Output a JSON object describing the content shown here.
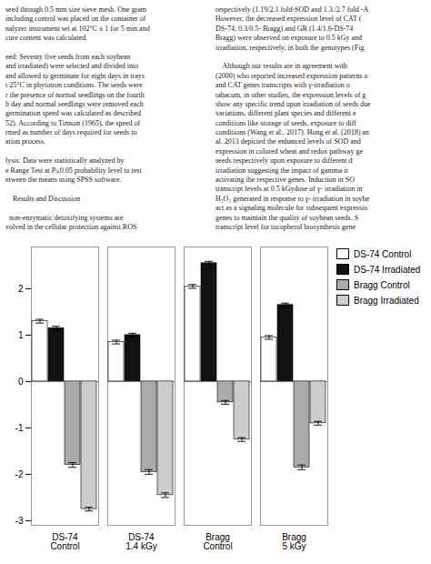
{
  "chart_data": {
    "type": "bar",
    "categories": [
      "DS-74\nControl",
      "DS-74\n1.4 kGy",
      "Bragg\nControl",
      "Bragg\n5 kGy"
    ],
    "series": [
      {
        "name": "DS-74 Control",
        "color": "white",
        "values": [
          1.3,
          0.85,
          2.05,
          0.95
        ],
        "errors": [
          0.04,
          0.04,
          0.04,
          0.04
        ]
      },
      {
        "name": "DS-74 Irradiated",
        "color": "#111111",
        "values": [
          1.15,
          1.0,
          2.55,
          1.65
        ],
        "errors": [
          0.04,
          0.04,
          0.04,
          0.04
        ]
      },
      {
        "name": "Bragg Control",
        "color": "#aaaaaa",
        "values": [
          -1.8,
          -1.95,
          -0.45,
          -1.85
        ],
        "errors": [
          0.05,
          0.05,
          0.04,
          0.05
        ]
      },
      {
        "name": "Bragg Irradiated",
        "color": "#cccccc",
        "values": [
          -2.75,
          -2.45,
          -1.25,
          -0.9
        ],
        "errors": [
          0.04,
          0.05,
          0.04,
          0.04
        ]
      }
    ],
    "ylim": [
      -3.1,
      2.9
    ],
    "yticks": [
      -3,
      -2,
      -1,
      0,
      1,
      2
    ],
    "grid": false,
    "legend": "right",
    "annotations": [
      "seed through 0.5 mm size sieve mesh. One gram\nincluding control was placed on the container of\nnalyzer instrument set at 102°C ± 1 for 5 min and\ncure content was calculated.\n\need: Seventy five seeds from each soybean\nand irradiated) were selected and divided into\nand allowed to germinate for eight days in trays\nt 25°C in phytotron conditions. The seeds were\nr the presence of normal seedlings on the fourth\nh day and normal seedlings were removed each\ngermination speed was calculated as described\n52). According to Timson (1965), the speed of\nrmed as number of days required for seeds to\nation process.\n\nlysis: Data were statistically analyzed by\ne Range Test at P≤0.05 probability level to test\netween the means using SPSS software.\n\n    Results and Discussion\n\n  non-enzymatic detoxifying systems are\nvolved in the cellular protection against ROS",
      "respectively (1.19/2.1 fold-SOD and 1.3./2.7 fold -A\nHowever, the decreased expression level of CAT (\nDS-74; 0.3/0.5- Bragg) and GR (1.4/1.6-DS-74\nBragg) were observed on exposure to 0.5 kGy and\nirradiation, respectively, in both the genotypes (Fig.\n\n    Although our results are in agreement with\n(2000) who reported increased expression patterns o\nand CAT genes transcripts with γ-irradiation o\ntabacum, in other studies, the expression levels of g\nshow any specific trend upon irradiation of seeds due\nvariations, different plant species and different e\nconditions like storage of seeds, exposure to diff\nconditions (Wang et al., 2017). Hong et al. (2018) an\nal. 2013 depicted the enhanced levels of SOD and\nexpression in colored wheat and redox pathway ge\nseeds respectively upon exposure to different d\nirradiation suggesting the impact of gamma ir\nactivating the respective genes. Induction in SO\ntranscript levels at 0.5 kGydose of γ- irradiation in\nH₂O₂ generated in response to γ- irradiation in soybe\nact as a signaling molecule for subsequent expressio\ngenes to maintain the quality of soybean seeds. S\ntranscript level for tocopherol biosynthesis gene"
    ]
  }
}
